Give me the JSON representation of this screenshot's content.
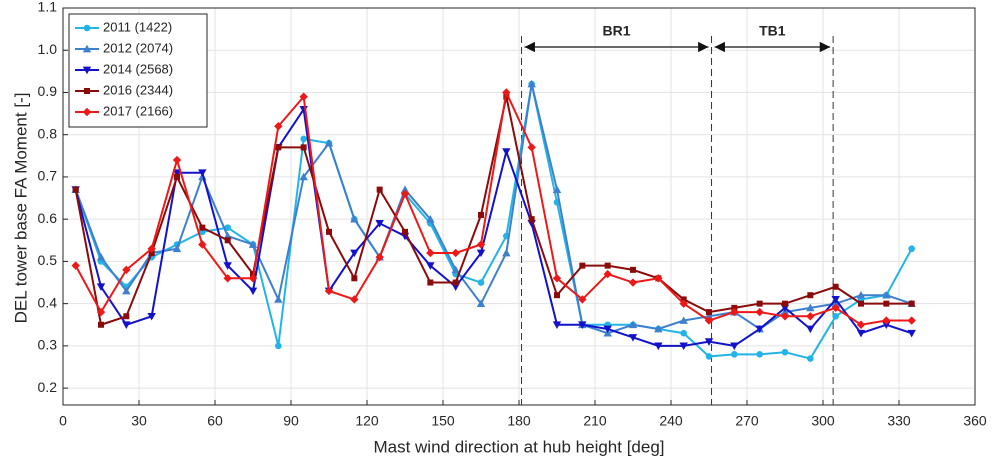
{
  "chart_data": {
    "type": "line",
    "xlabel": "Mast wind direction at hub height [deg]",
    "ylabel": "DEL tower base FA Moment [-]",
    "x": [
      5,
      15,
      25,
      35,
      45,
      55,
      65,
      75,
      85,
      95,
      105,
      115,
      125,
      135,
      145,
      155,
      165,
      175,
      185,
      195,
      205,
      215,
      225,
      235,
      245,
      255,
      265,
      275,
      285,
      295,
      305,
      315,
      325,
      335
    ],
    "series": [
      {
        "name": "2011 (1422)",
        "color": "#22b4e6",
        "marker": "circle",
        "values": [
          0.67,
          0.5,
          0.44,
          0.51,
          0.54,
          0.57,
          0.58,
          0.54,
          0.3,
          0.79,
          0.78,
          0.6,
          0.51,
          0.66,
          0.59,
          0.47,
          0.45,
          0.56,
          0.92,
          0.64,
          0.35,
          0.35,
          0.35,
          0.34,
          0.33,
          0.275,
          0.28,
          0.28,
          0.285,
          0.27,
          0.37,
          0.41,
          0.42,
          0.53
        ]
      },
      {
        "name": "2012 (2074)",
        "color": "#3d80d0",
        "marker": "triangle-up",
        "values": [
          0.67,
          0.51,
          0.43,
          0.52,
          0.53,
          0.7,
          0.56,
          0.54,
          0.41,
          0.7,
          0.78,
          0.6,
          0.51,
          0.67,
          0.6,
          0.48,
          0.4,
          0.52,
          0.92,
          0.67,
          0.35,
          0.33,
          0.35,
          0.34,
          0.36,
          0.37,
          0.38,
          0.34,
          0.38,
          0.39,
          0.4,
          0.42,
          0.42,
          0.4
        ]
      },
      {
        "name": "2014 (2568)",
        "color": "#1212cc",
        "marker": "triangle-down",
        "values": [
          0.67,
          0.44,
          0.35,
          0.37,
          0.71,
          0.71,
          0.49,
          0.43,
          0.77,
          0.86,
          0.43,
          0.52,
          0.59,
          0.56,
          0.49,
          0.44,
          0.52,
          0.76,
          0.59,
          0.35,
          0.35,
          0.34,
          0.32,
          0.3,
          0.3,
          0.31,
          0.3,
          0.34,
          0.39,
          0.34,
          0.41,
          0.33,
          0.35,
          0.33
        ]
      },
      {
        "name": "2016 (2344)",
        "color": "#8b0a0a",
        "marker": "square",
        "values": [
          0.67,
          0.35,
          0.37,
          0.52,
          0.7,
          0.58,
          0.55,
          0.47,
          0.77,
          0.77,
          0.57,
          0.46,
          0.67,
          0.57,
          0.45,
          0.45,
          0.61,
          0.89,
          0.6,
          0.42,
          0.49,
          0.49,
          0.48,
          0.46,
          0.41,
          0.38,
          0.39,
          0.4,
          0.4,
          0.42,
          0.44,
          0.4,
          0.4,
          0.4
        ]
      },
      {
        "name": "2017 (2166)",
        "color": "#ee1818",
        "marker": "diamond",
        "values": [
          0.49,
          0.38,
          0.48,
          0.53,
          0.74,
          0.54,
          0.46,
          0.46,
          0.82,
          0.89,
          0.43,
          0.41,
          0.51,
          0.66,
          0.52,
          0.52,
          0.54,
          0.9,
          0.77,
          0.46,
          0.41,
          0.47,
          0.45,
          0.46,
          0.4,
          0.36,
          0.38,
          0.38,
          0.37,
          0.37,
          0.39,
          0.35,
          0.36,
          0.36
        ]
      }
    ],
    "xlim": [
      0,
      360
    ],
    "xticks": [
      0,
      30,
      60,
      90,
      120,
      150,
      180,
      210,
      240,
      270,
      300,
      330,
      360
    ],
    "ylim": [
      0.16,
      1.1
    ],
    "yticks": [
      0.2,
      0.3,
      0.4,
      0.5,
      0.6,
      0.7,
      0.8,
      0.9,
      {
        "value": 1,
        "label": "1.0"
      },
      1.1
    ],
    "grid": true,
    "legend": "upper left",
    "vlines": [
      181,
      256,
      304
    ],
    "annotations": [
      {
        "text": "BR1",
        "from": 181,
        "to": 256
      },
      {
        "text": "TB1",
        "from": 256,
        "to": 304
      }
    ]
  }
}
